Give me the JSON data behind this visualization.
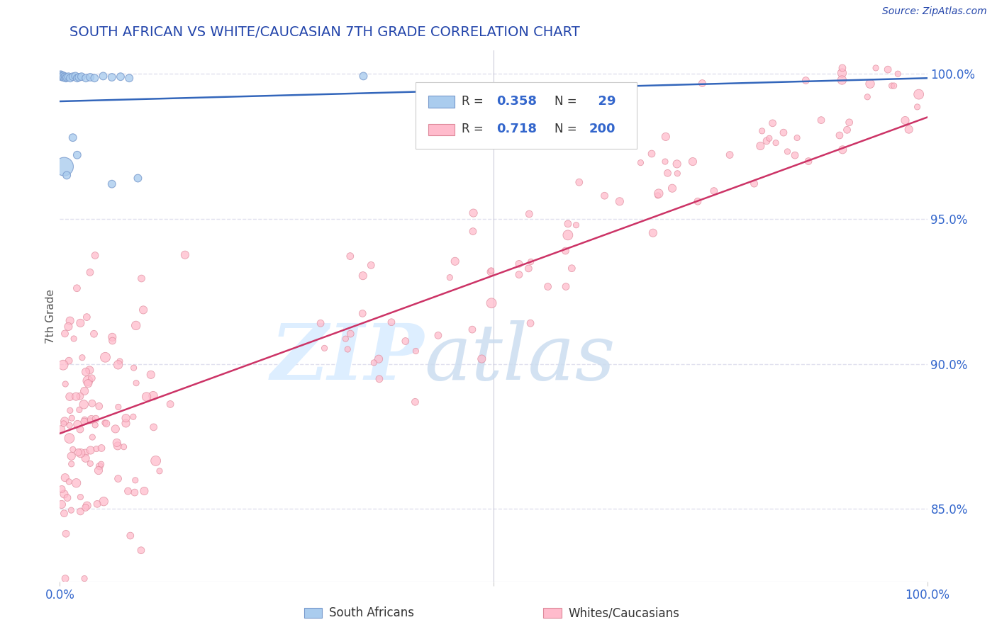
{
  "title": "SOUTH AFRICAN VS WHITE/CAUCASIAN 7TH GRADE CORRELATION CHART",
  "source": "Source: ZipAtlas.com",
  "ylabel": "7th Grade",
  "ylabel_right_labels": [
    "100.0%",
    "95.0%",
    "90.0%",
    "85.0%"
  ],
  "ylabel_right_values": [
    1.0,
    0.95,
    0.9,
    0.85
  ],
  "xlim": [
    0.0,
    1.0
  ],
  "ylim": [
    0.825,
    1.008
  ],
  "blue_R": 0.358,
  "blue_N": 29,
  "pink_R": 0.718,
  "pink_N": 200,
  "legend_label_blue": "South Africans",
  "legend_label_pink": "Whites/Caucasians",
  "title_color": "#2244aa",
  "source_color": "#2244aa",
  "axis_label_color": "#555555",
  "tick_color": "#3366cc",
  "blue_dot_color": "#aaccee",
  "blue_dot_edge": "#7799cc",
  "pink_dot_color": "#ffbbcc",
  "pink_dot_edge": "#dd8899",
  "blue_line_color": "#3366bb",
  "pink_line_color": "#cc3366",
  "grid_color": "#e0e0ee",
  "pink_trend_x": [
    0.0,
    1.0
  ],
  "pink_trend_y": [
    0.876,
    0.985
  ],
  "blue_trend_x": [
    0.0,
    1.0
  ],
  "blue_trend_y": [
    0.9905,
    0.9985
  ],
  "blue_dots": [
    [
      0.001,
      0.9995
    ],
    [
      0.002,
      0.9992
    ],
    [
      0.003,
      0.999
    ],
    [
      0.004,
      0.9992
    ],
    [
      0.005,
      0.9988
    ],
    [
      0.006,
      0.999
    ],
    [
      0.007,
      0.9985
    ],
    [
      0.008,
      0.9988
    ],
    [
      0.01,
      0.999
    ],
    [
      0.012,
      0.9985
    ],
    [
      0.015,
      0.999
    ],
    [
      0.018,
      0.9992
    ],
    [
      0.02,
      0.9985
    ],
    [
      0.022,
      0.9988
    ],
    [
      0.025,
      0.999
    ],
    [
      0.03,
      0.9985
    ],
    [
      0.035,
      0.9988
    ],
    [
      0.04,
      0.9985
    ],
    [
      0.05,
      0.9992
    ],
    [
      0.06,
      0.9988
    ],
    [
      0.07,
      0.999
    ],
    [
      0.08,
      0.9985
    ],
    [
      0.35,
      0.9992
    ],
    [
      0.015,
      0.978
    ],
    [
      0.02,
      0.972
    ],
    [
      0.005,
      0.968
    ],
    [
      0.008,
      0.965
    ],
    [
      0.06,
      0.962
    ],
    [
      0.09,
      0.964
    ]
  ],
  "blue_dot_sizes": [
    80,
    80,
    70,
    70,
    70,
    60,
    60,
    60,
    60,
    60,
    60,
    60,
    60,
    60,
    60,
    60,
    60,
    60,
    60,
    60,
    60,
    60,
    60,
    60,
    60,
    350,
    60,
    60,
    60
  ]
}
